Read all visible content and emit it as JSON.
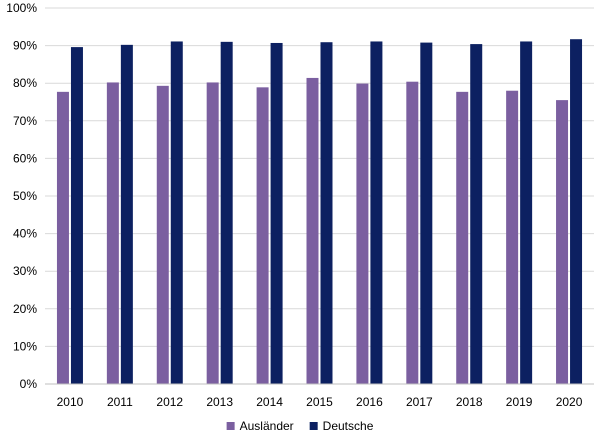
{
  "chart_data": {
    "type": "bar",
    "title": "",
    "xlabel": "",
    "ylabel": "",
    "categories": [
      "2010",
      "2011",
      "2012",
      "2013",
      "2014",
      "2015",
      "2016",
      "2017",
      "2018",
      "2019",
      "2020"
    ],
    "series": [
      {
        "name": "Ausländer",
        "color": "#7b5fa0",
        "values": [
          77.7,
          80.2,
          79.3,
          80.2,
          78.9,
          81.4,
          79.9,
          80.4,
          77.7,
          78.0,
          75.5
        ]
      },
      {
        "name": "Deutsche",
        "color": "#0c2061",
        "values": [
          89.6,
          90.2,
          91.1,
          91.0,
          90.7,
          90.9,
          91.1,
          90.8,
          90.4,
          91.1,
          91.7
        ]
      }
    ],
    "ylim": [
      0,
      100
    ],
    "y_ticks": [
      "0%",
      "10%",
      "20%",
      "30%",
      "40%",
      "50%",
      "60%",
      "70%",
      "80%",
      "90%",
      "100%"
    ],
    "grid": true,
    "legend_position": "bottom"
  }
}
